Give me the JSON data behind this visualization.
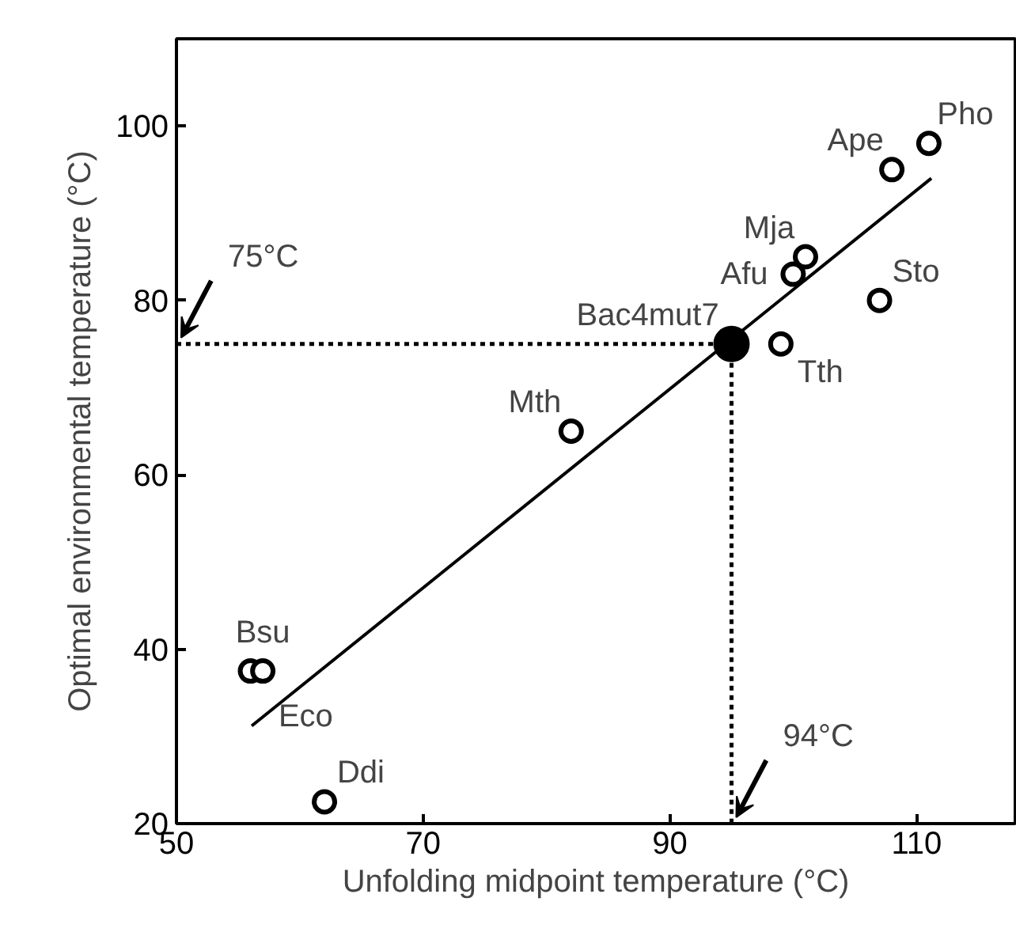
{
  "chart_data": {
    "type": "scatter",
    "xlabel": "Unfolding midpoint temperature (°C)",
    "ylabel": "Optimal environmental temperature (°C)",
    "xlim": [
      50,
      118
    ],
    "ylim": [
      20,
      110
    ],
    "xticks": [
      50,
      70,
      90,
      110
    ],
    "yticks": [
      20,
      40,
      60,
      80,
      100
    ],
    "grid": false,
    "series": [
      {
        "type": "line",
        "color": "#000000",
        "line_style": "solid",
        "x": [
          56.1,
          111.2
        ],
        "values": [
          31.2,
          94
        ]
      },
      {
        "type": "line",
        "color": "#000000",
        "line_style": "dotted",
        "x": [
          50,
          95
        ],
        "values": [
          75,
          75
        ]
      },
      {
        "type": "line",
        "color": "#000000",
        "line_style": "dotted",
        "x": [
          95,
          95
        ],
        "values": [
          75,
          20
        ]
      },
      {
        "color": "#000000",
        "marker": "circle",
        "x": [
          111,
          108,
          101,
          100,
          107,
          99,
          82,
          56,
          57,
          62
        ],
        "values": [
          98,
          95,
          85,
          83,
          80,
          75,
          65,
          37.5,
          37.5,
          22.5
        ]
      },
      {
        "color": "#000000",
        "marker": "circle",
        "x": [
          95
        ],
        "values": [
          75
        ]
      }
    ],
    "annotations": [
      {
        "text": "Pho",
        "x": 111,
        "y": 98
      },
      {
        "text": "Ape",
        "x": 108,
        "y": 95
      },
      {
        "text": "Mja",
        "x": 101,
        "y": 85
      },
      {
        "text": "Afu",
        "x": 100,
        "y": 83
      },
      {
        "text": "Sto",
        "x": 107,
        "y": 80
      },
      {
        "text": "Tth",
        "x": 99,
        "y": 75
      },
      {
        "text": "Bac4mut7",
        "x": 95,
        "y": 75
      },
      {
        "text": "Mth",
        "x": 82,
        "y": 65
      },
      {
        "text": "Bsu",
        "x": 57,
        "y": 37.5
      },
      {
        "text": "Eco",
        "x": 56,
        "y": 37.5
      },
      {
        "text": "Ddi",
        "x": 62,
        "y": 22.5
      },
      {
        "text": "75°C",
        "x": 50,
        "y": 75
      },
      {
        "text": "94°C",
        "x": 95,
        "y": 20
      }
    ]
  }
}
